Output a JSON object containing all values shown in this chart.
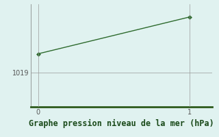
{
  "x": [
    0,
    1
  ],
  "y": [
    1021.2,
    1025.5
  ],
  "line_color": "#2d6a2d",
  "marker_color": "#2d6a2d",
  "bg_color": "#e0f2f0",
  "grid_color": "#999999",
  "axis_color": "#555555",
  "bottom_spine_color": "#2d5a1b",
  "left_spine_color": "#777777",
  "title": "Graphe pression niveau de la mer (hPa)",
  "title_color": "#1a4a1a",
  "title_fontsize": 8.5,
  "yticks": [
    1019
  ],
  "xticks": [
    0,
    1
  ],
  "ylim": [
    1015.0,
    1027.0
  ],
  "xlim": [
    -0.05,
    1.15
  ]
}
